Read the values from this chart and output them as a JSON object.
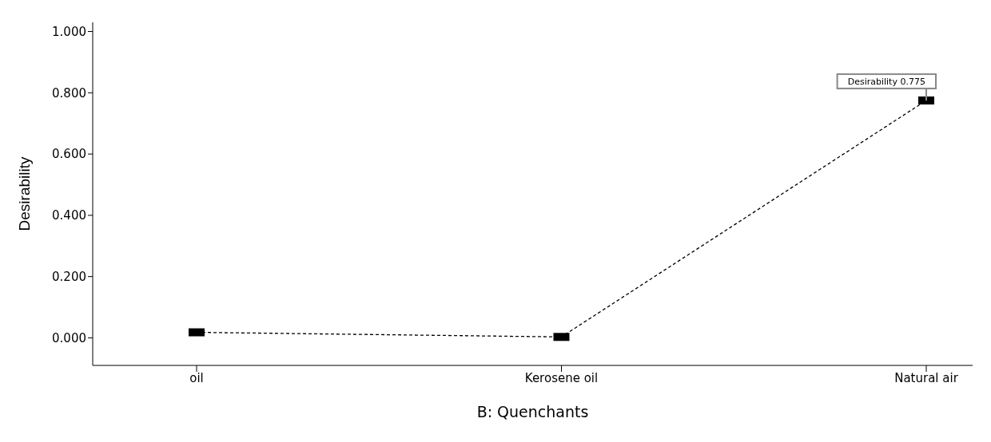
{
  "chart_data": {
    "type": "line",
    "xlabel": "B: Quenchants",
    "ylabel": "Desirability",
    "categories": [
      "oil",
      "Kerosene oil",
      "Natural air"
    ],
    "series": [
      {
        "color": "#000000",
        "values": [
          0.018,
          0.003,
          0.775
        ]
      }
    ],
    "ylim": [
      -0.09,
      1.03
    ],
    "yticks": [
      {
        "value": 0,
        "label": "0.000"
      },
      {
        "value": 0.2,
        "label": "0.200"
      },
      {
        "value": 0.4,
        "label": "0.400"
      },
      {
        "value": 0.6,
        "label": "0.600"
      },
      {
        "value": 0.8,
        "label": "0.800"
      },
      {
        "value": 1,
        "label": "1.000"
      }
    ],
    "grid": false,
    "marker": "square",
    "line_style": "dashed",
    "annotations": [
      {
        "text": "Desirability 0.775",
        "x": "Natural air",
        "y": 0.775
      }
    ]
  }
}
